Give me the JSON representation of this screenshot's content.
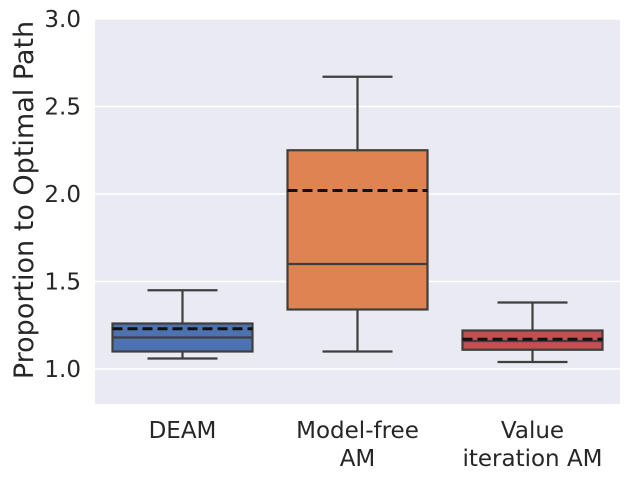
{
  "chart_data": {
    "type": "box",
    "title": "",
    "xlabel": "",
    "ylabel": "Proportion to Optimal Path",
    "ylim": [
      0.8,
      3.0
    ],
    "yticks": [
      "1.0",
      "1.5",
      "2.0",
      "2.5",
      "3.0"
    ],
    "ytick_values": [
      1.0,
      1.5,
      2.0,
      2.5,
      3.0
    ],
    "grid": true,
    "mean_line_style": "dashed",
    "categories": [
      {
        "label_lines": [
          "DEAM"
        ],
        "color": "#4c72b0",
        "whisker_low": 1.06,
        "q1": 1.1,
        "median": 1.18,
        "q3": 1.26,
        "whisker_high": 1.45,
        "mean": 1.23
      },
      {
        "label_lines": [
          "Model-free",
          "AM"
        ],
        "color": "#dd8452",
        "whisker_low": 1.1,
        "q1": 1.34,
        "median": 1.6,
        "q3": 2.25,
        "whisker_high": 2.67,
        "mean": 2.02
      },
      {
        "label_lines": [
          "Value",
          "iteration AM"
        ],
        "color": "#c44e52",
        "whisker_low": 1.04,
        "q1": 1.11,
        "median": 1.16,
        "q3": 1.22,
        "whisker_high": 1.38,
        "mean": 1.17
      }
    ]
  },
  "colors": {
    "plot_background": "#eaeaf2",
    "grid": "#ffffff",
    "box_edge": "#3f3f3f",
    "mean_line": "#111111"
  }
}
